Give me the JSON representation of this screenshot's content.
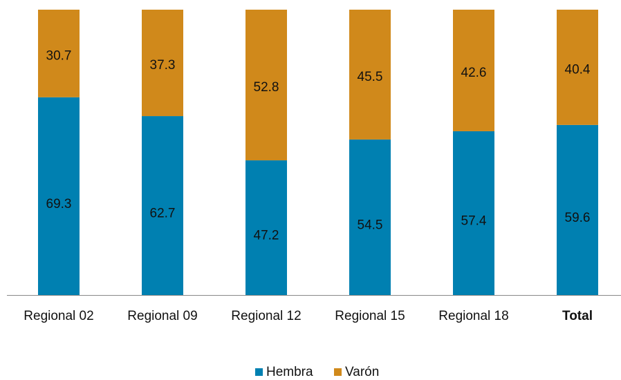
{
  "chart_data": {
    "type": "stacked_bar",
    "categories": [
      "Regional 02",
      "Regional 09",
      "Regional 12",
      "Regional 15",
      "Regional 18",
      "Total"
    ],
    "series": [
      {
        "name": "Hembra",
        "color": "#0080b1",
        "values": [
          69.3,
          62.7,
          47.2,
          54.5,
          57.4,
          59.6
        ]
      },
      {
        "name": "Varón",
        "color": "#d0891b",
        "values": [
          30.7,
          37.3,
          52.8,
          45.5,
          42.6,
          40.4
        ]
      }
    ],
    "ylim": [
      0,
      100
    ]
  }
}
